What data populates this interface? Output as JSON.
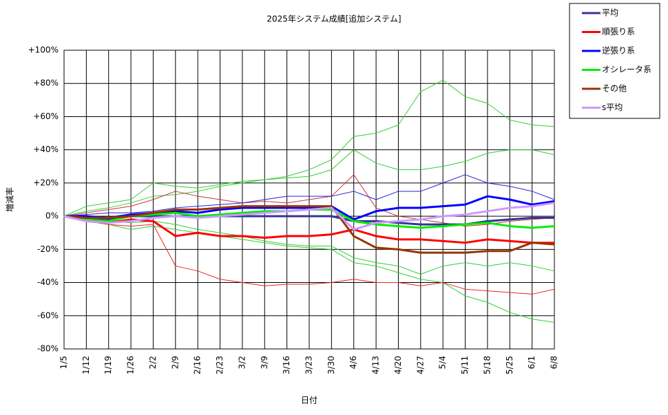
{
  "chart_data": {
    "type": "line",
    "title": "2025年システム成績[追加システム]",
    "x_label": "日付",
    "y_label": "増減率",
    "categories": [
      "1/5",
      "1/12",
      "1/19",
      "1/26",
      "2/2",
      "2/9",
      "2/16",
      "2/23",
      "3/2",
      "3/9",
      "3/16",
      "3/23",
      "3/30",
      "4/6",
      "4/13",
      "4/20",
      "4/27",
      "5/4",
      "5/11",
      "5/18",
      "5/25",
      "6/1",
      "6/8"
    ],
    "ylim": [
      -80,
      100
    ],
    "yticks": [
      {
        "value": -80,
        "label": "-80%"
      },
      {
        "value": -60,
        "label": "-60%"
      },
      {
        "value": -40,
        "label": "-40%"
      },
      {
        "value": -20,
        "label": "-20%"
      },
      {
        "value": 0,
        "label": "0%"
      },
      {
        "value": 20,
        "label": "+20%"
      },
      {
        "value": 40,
        "label": "+40%"
      },
      {
        "value": 60,
        "label": "+60%"
      },
      {
        "value": 80,
        "label": "+80%"
      },
      {
        "value": 100,
        "label": "+100%"
      }
    ],
    "grid": true,
    "legend": "top-right",
    "series": [
      {
        "color": "#33cc33",
        "values": [
          0,
          6,
          8,
          10,
          20,
          18,
          17,
          19,
          21,
          22,
          24,
          28,
          34,
          48,
          50,
          55,
          75,
          82,
          72,
          68,
          58,
          55,
          54
        ]
      },
      {
        "color": "#33cc33",
        "values": [
          0,
          3,
          5,
          8,
          12,
          13,
          15,
          18,
          20,
          22,
          23,
          24,
          28,
          40,
          32,
          28,
          28,
          30,
          33,
          38,
          40,
          40,
          37
        ]
      },
      {
        "color": "#33cc33",
        "values": [
          0,
          -3,
          -5,
          -8,
          -6,
          -8,
          -10,
          -12,
          -14,
          -16,
          -18,
          -19,
          -20,
          -28,
          -30,
          -34,
          -38,
          -40,
          -48,
          -52,
          -58,
          -62,
          -64
        ]
      },
      {
        "color": "#33cc33",
        "values": [
          0,
          -2,
          -3,
          -4,
          -3,
          -5,
          -8,
          -10,
          -12,
          -15,
          -17,
          -18,
          -18,
          -25,
          -28,
          -30,
          -35,
          -30,
          -28,
          -30,
          -28,
          -30,
          -33
        ]
      },
      {
        "color": "#ee2222",
        "values": [
          0,
          -3,
          -5,
          -6,
          -5,
          -30,
          -33,
          -38,
          -40,
          -42,
          -41,
          -41,
          -40,
          -38,
          -40,
          -40,
          -42,
          -40,
          -44,
          -45,
          -46,
          -47,
          -44
        ]
      },
      {
        "color": "#cc3333",
        "values": [
          0,
          2,
          4,
          6,
          10,
          15,
          12,
          10,
          8,
          9,
          8,
          10,
          12,
          25,
          5,
          0,
          -2,
          -4,
          -6,
          -5,
          -3,
          -2,
          -1
        ]
      },
      {
        "color": "#2222dd",
        "values": [
          0,
          1,
          2,
          2,
          3,
          5,
          6,
          7,
          8,
          10,
          12,
          12,
          12,
          15,
          10,
          15,
          15,
          20,
          25,
          20,
          18,
          15,
          10
        ]
      },
      {
        "name": "平均",
        "color": "#333399",
        "values": [
          0,
          -1,
          -2,
          0,
          0,
          0,
          0,
          0,
          0,
          0,
          0,
          0,
          0,
          -3,
          -3,
          -4,
          -5,
          -5,
          -5,
          -3,
          -2,
          -1,
          -1
        ]
      },
      {
        "name": "順張り系",
        "color": "#ff0000",
        "values": [
          0,
          -3,
          -4,
          -2,
          -3,
          -12,
          -10,
          -12,
          -12,
          -13,
          -12,
          -12,
          -11,
          -8,
          -12,
          -14,
          -14,
          -15,
          -16,
          -14,
          -15,
          -16,
          -16
        ]
      },
      {
        "name": "逆張り系",
        "color": "#0000ff",
        "values": [
          0,
          0,
          -1,
          1,
          2,
          3,
          2,
          4,
          5,
          5,
          5,
          5,
          6,
          -2,
          3,
          5,
          5,
          6,
          7,
          12,
          10,
          7,
          9
        ]
      },
      {
        "name": "オシレータ系",
        "color": "#00ee00",
        "values": [
          0,
          -2,
          -3,
          0,
          1,
          2,
          0,
          1,
          2,
          3,
          3,
          4,
          4,
          -3,
          -5,
          -6,
          -7,
          -6,
          -5,
          -4,
          -6,
          -7,
          -6
        ]
      },
      {
        "name": "その他",
        "color": "#993300",
        "values": [
          0,
          -1,
          -1,
          0,
          2,
          4,
          4,
          5,
          6,
          6,
          6,
          6,
          6,
          -12,
          -19,
          -20,
          -22,
          -22,
          -22,
          -21,
          -21,
          -16,
          -17
        ]
      },
      {
        "name": "s平均",
        "color": "#cc99ff",
        "values": [
          0,
          -3,
          -4,
          -3,
          -1,
          0,
          -1,
          0,
          1,
          2,
          3,
          4,
          5,
          -8,
          -4,
          -3,
          -2,
          0,
          1,
          3,
          5,
          6,
          8
        ]
      }
    ]
  }
}
